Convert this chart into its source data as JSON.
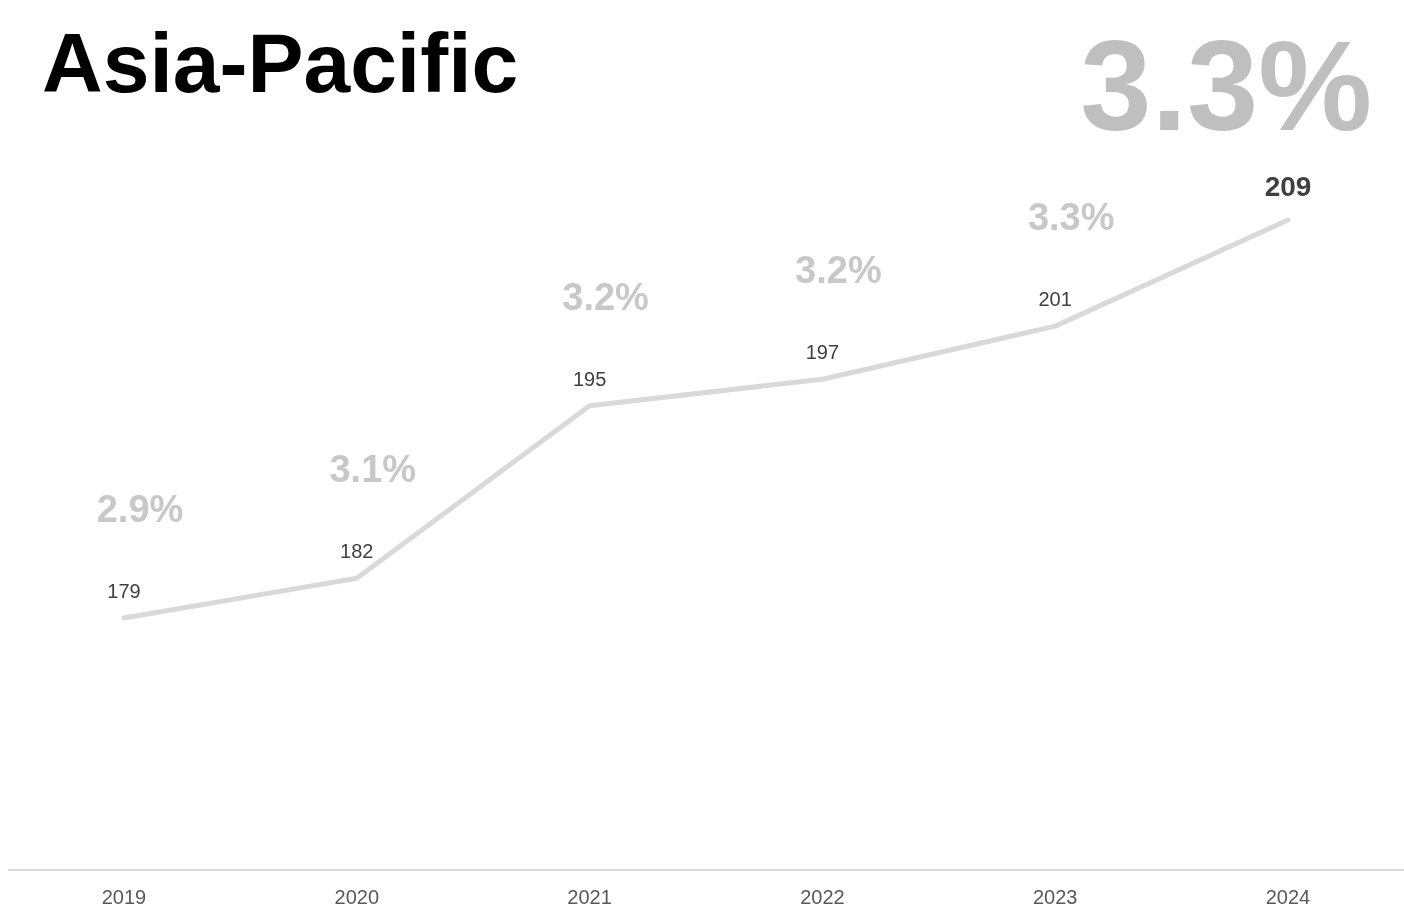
{
  "chart_data": {
    "type": "line",
    "title": "Asia-Pacific",
    "categories": [
      "2019",
      "2020",
      "2021",
      "2022",
      "2023",
      "2024"
    ],
    "series": [
      {
        "color": "#d9d9d9",
        "values": [
          179,
          182,
          195,
          197,
          201,
          209
        ]
      }
    ],
    "data_labels": true,
    "marker": "none",
    "line_style": "solid",
    "annotations": [
      "3.3%",
      {
        "text": "2.9%",
        "x": "2019",
        "y": 179
      },
      {
        "text": "3.1%",
        "x": "2020",
        "y": 182
      },
      {
        "text": "3.2%",
        "x": "2021",
        "y": 195
      },
      {
        "text": "3.2%",
        "x": "2022",
        "y": 197
      },
      {
        "text": "3.3%",
        "x": "2023",
        "y": 201
      }
    ]
  }
}
